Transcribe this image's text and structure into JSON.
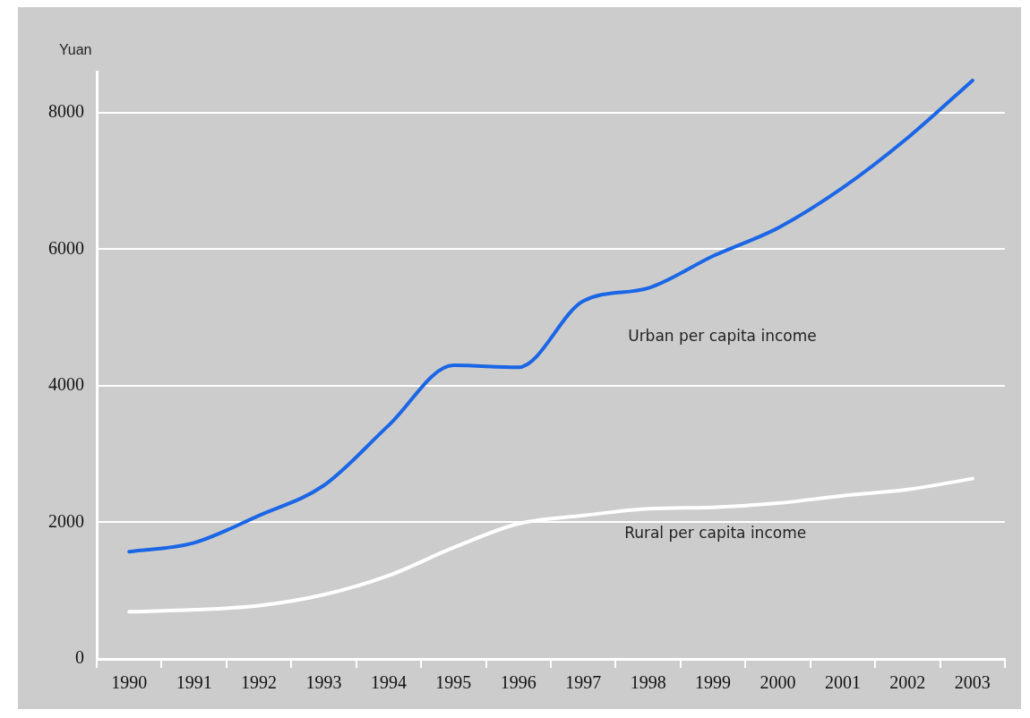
{
  "chart_data": {
    "type": "line",
    "ylabel": "Yuan",
    "categories": [
      "1990",
      "1991",
      "1992",
      "1993",
      "1994",
      "1995",
      "1996",
      "1997",
      "1998",
      "1999",
      "2000",
      "2001",
      "2002",
      "2003"
    ],
    "series": [
      {
        "name": "Urban per capita income",
        "color": "#1a66e6",
        "values": [
          1570,
          1700,
          2100,
          2540,
          3420,
          4300,
          4270,
          5240,
          5430,
          5900,
          6310,
          6900,
          7630,
          8470
        ]
      },
      {
        "name": "Rural per capita income",
        "color": "#ffffff",
        "values": [
          690,
          720,
          780,
          940,
          1220,
          1630,
          1980,
          2100,
          2200,
          2220,
          2280,
          2390,
          2480,
          2640
        ]
      }
    ],
    "ylim": [
      0,
      8600
    ],
    "yticks": [
      0,
      2000,
      4000,
      6000,
      8000
    ],
    "grid": "y",
    "legend": false,
    "marker": "none",
    "line_style": "solid"
  }
}
